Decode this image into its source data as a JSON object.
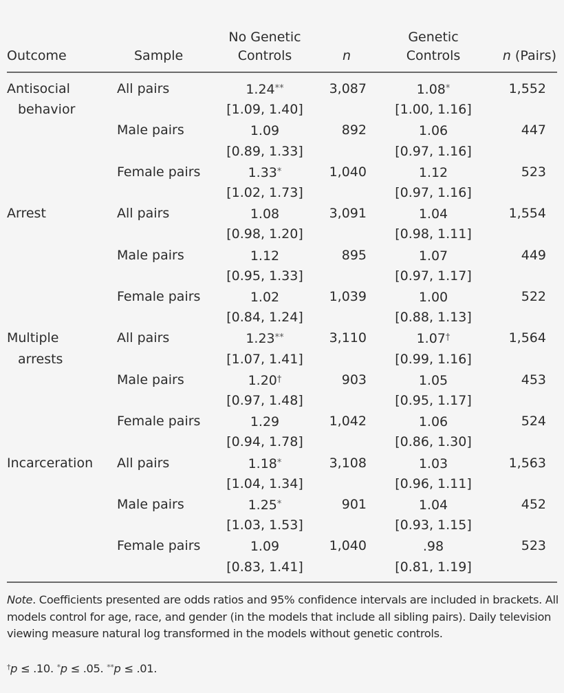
{
  "table": {
    "headers": {
      "outcome": "Outcome",
      "sample": "Sample",
      "no_genetic_controls_line1": "No Genetic",
      "no_genetic_controls_line2": "Controls",
      "n": "n",
      "genetic_controls_line1": "Genetic",
      "genetic_controls_line2": "Controls",
      "n_pairs_italic": "n",
      "n_pairs_rest": " (Pairs)"
    },
    "groups": [
      {
        "outcome_line1": "Antisocial",
        "outcome_line2": "behavior",
        "rows": [
          {
            "sample": "All pairs",
            "ngc_or": "1.24",
            "ngc_sig": "**",
            "ngc_ci": "[1.09, 1.40]",
            "n": "3,087",
            "gc_or": "1.08",
            "gc_sig": "*",
            "gc_ci": "[1.00, 1.16]",
            "n_pairs": "1,552"
          },
          {
            "sample": "Male pairs",
            "ngc_or": "1.09",
            "ngc_sig": "",
            "ngc_ci": "[0.89, 1.33]",
            "n": "892",
            "gc_or": "1.06",
            "gc_sig": "",
            "gc_ci": "[0.97, 1.16]",
            "n_pairs": "447"
          },
          {
            "sample": "Female pairs",
            "ngc_or": "1.33",
            "ngc_sig": "*",
            "ngc_ci": "[1.02, 1.73]",
            "n": "1,040",
            "gc_or": "1.12",
            "gc_sig": "",
            "gc_ci": "[0.97, 1.16]",
            "n_pairs": "523"
          }
        ]
      },
      {
        "outcome_line1": "Arrest",
        "outcome_line2": "",
        "rows": [
          {
            "sample": "All pairs",
            "ngc_or": "1.08",
            "ngc_sig": "",
            "ngc_ci": "[0.98, 1.20]",
            "n": "3,091",
            "gc_or": "1.04",
            "gc_sig": "",
            "gc_ci": "[0.98, 1.11]",
            "n_pairs": "1,554"
          },
          {
            "sample": "Male pairs",
            "ngc_or": "1.12",
            "ngc_sig": "",
            "ngc_ci": "[0.95, 1.33]",
            "n": "895",
            "gc_or": "1.07",
            "gc_sig": "",
            "gc_ci": "[0.97, 1.17]",
            "n_pairs": "449"
          },
          {
            "sample": "Female pairs",
            "ngc_or": "1.02",
            "ngc_sig": "",
            "ngc_ci": "[0.84, 1.24]",
            "n": "1,039",
            "gc_or": "1.00",
            "gc_sig": "",
            "gc_ci": "[0.88, 1.13]",
            "n_pairs": "522"
          }
        ]
      },
      {
        "outcome_line1": "Multiple",
        "outcome_line2": "arrests",
        "rows": [
          {
            "sample": "All pairs",
            "ngc_or": "1.23",
            "ngc_sig": "**",
            "ngc_ci": "[1.07, 1.41]",
            "n": "3,110",
            "gc_or": "1.07",
            "gc_sig": "†",
            "gc_ci": "[0.99, 1.16]",
            "n_pairs": "1,564"
          },
          {
            "sample": "Male pairs",
            "ngc_or": "1.20",
            "ngc_sig": "†",
            "ngc_ci": "[0.97, 1.48]",
            "n": "903",
            "gc_or": "1.05",
            "gc_sig": "",
            "gc_ci": "[0.95, 1.17]",
            "n_pairs": "453"
          },
          {
            "sample": "Female pairs",
            "ngc_or": "1.29",
            "ngc_sig": "",
            "ngc_ci": "[0.94, 1.78]",
            "n": "1,042",
            "gc_or": "1.06",
            "gc_sig": "",
            "gc_ci": "[0.86, 1.30]",
            "n_pairs": "524"
          }
        ]
      },
      {
        "outcome_line1": "Incarceration",
        "outcome_line2": "",
        "rows": [
          {
            "sample": "All pairs",
            "ngc_or": "1.18",
            "ngc_sig": "*",
            "ngc_ci": "[1.04, 1.34]",
            "n": "3,108",
            "gc_or": "1.03",
            "gc_sig": "",
            "gc_ci": "[0.96, 1.11]",
            "n_pairs": "1,563"
          },
          {
            "sample": "Male pairs",
            "ngc_or": "1.25",
            "ngc_sig": "*",
            "ngc_ci": "[1.03, 1.53]",
            "n": "901",
            "gc_or": "1.04",
            "gc_sig": "",
            "gc_ci": "[0.93, 1.15]",
            "n_pairs": "452"
          },
          {
            "sample": "Female pairs",
            "ngc_or": "1.09",
            "ngc_sig": "",
            "ngc_ci": "[0.83, 1.41]",
            "n": "1,040",
            "gc_or": ".98",
            "gc_sig": "",
            "gc_ci": "[0.81, 1.19]",
            "n_pairs": "523"
          }
        ]
      }
    ]
  },
  "note": {
    "label": "Note",
    "text": ". Coefficients presented are odds ratios and 95% confidence intervals are included in brackets. All models control for age, race, and gender (in the models that include all sibling pairs). Daily television viewing measure natural log transformed in the models without genetic controls.",
    "sig_dagger": "†",
    "sig_p1": "p",
    "sig_t1": " ≤ .10. ",
    "sig_star1": "*",
    "sig_p2": "p",
    "sig_t2": " ≤ .05. ",
    "sig_star2": "**",
    "sig_p3": "p",
    "sig_t3": " ≤ .01."
  }
}
